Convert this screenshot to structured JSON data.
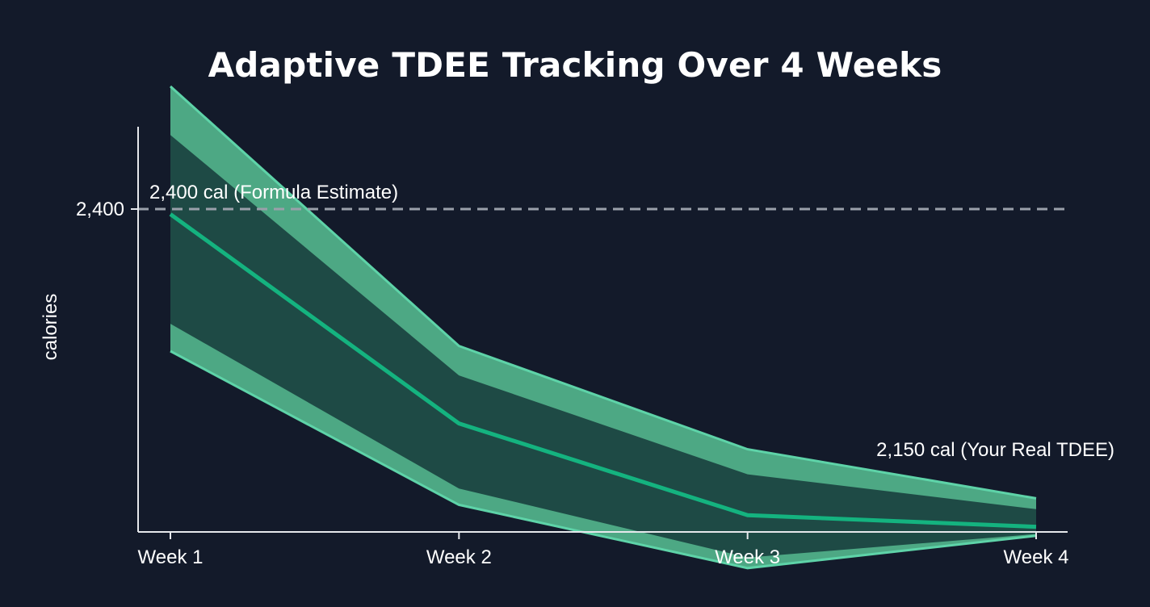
{
  "chart_data": {
    "type": "area",
    "title": "Adaptive TDEE Tracking Over 4 Weeks",
    "xlabel": "",
    "ylabel": "calories",
    "categories": [
      "Week 1",
      "Week 2",
      "Week 3",
      "Week 4"
    ],
    "yticks": [
      2400
    ],
    "ytick_labels": [
      "2,400"
    ],
    "ylim": [
      2000,
      2500
    ],
    "series": [
      {
        "role": "estimate",
        "values": [
          2396,
          2234,
          2163,
          2154
        ]
      },
      {
        "role": "band_upper",
        "values": [
          2495,
          2294,
          2214,
          2176
        ]
      },
      {
        "role": "band_lower",
        "values": [
          2290,
          2171,
          2122,
          2147
        ]
      }
    ],
    "reference_line": {
      "value": 2400,
      "label": "2,400 cal (Formula Estimate)",
      "style": "dashed"
    },
    "end_annotation": {
      "label": "2,150 cal (Your Real TDEE)"
    },
    "grid": false,
    "legend": "none",
    "colors": {
      "background": "#131a2a",
      "line": "#14b37f",
      "band_edge": "#5ed3a8",
      "band_outer": "#52b48c",
      "band_inner": "#1e4a45",
      "reference": "#9aa0aa",
      "axis": "#e6e8ec",
      "text": "#ffffff"
    }
  }
}
